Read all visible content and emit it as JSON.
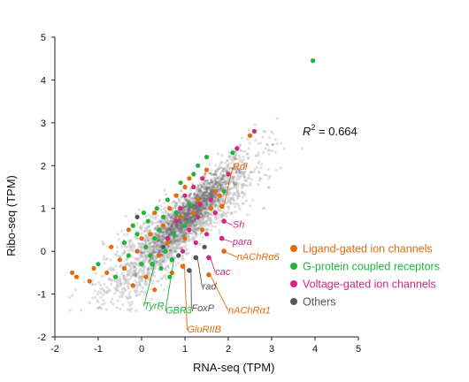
{
  "chart_data": {
    "type": "scatter",
    "xlabel": "RNA-seq (TPM)",
    "ylabel": "Ribo-seq (TPM)",
    "xlim": [
      -2,
      5
    ],
    "ylim": [
      -2,
      5
    ],
    "x_ticks": [
      "-2",
      "-1",
      "0",
      "1",
      "2",
      "3",
      "4",
      "5"
    ],
    "y_ticks": [
      "-2",
      "-1",
      "0",
      "1",
      "2",
      "3",
      "4",
      "5"
    ],
    "annotation": {
      "text_prefix": "R",
      "text_sup": "2",
      "text_suffix": " = 0.664"
    },
    "colors": {
      "background_points": "#bfbfbf",
      "ligand": "#e36c0a",
      "gpcr": "#1fb53c",
      "voltage": "#d6257f",
      "others": "#555555"
    },
    "legend": {
      "placement": "right",
      "entries": [
        {
          "key": "ligand",
          "label": "Ligand-gated ion channels",
          "color": "#e36c0a"
        },
        {
          "key": "gpcr",
          "label": "G-protein coupled receptors",
          "color": "#1fb53c"
        },
        {
          "key": "voltage",
          "label": "Voltage-gated ion channels",
          "color": "#d6257f"
        },
        {
          "key": "others",
          "label": "Others",
          "color": "#555555"
        }
      ]
    },
    "labeled_genes": [
      {
        "label": "Rdl",
        "group": "ligand",
        "x": 1.85,
        "y": 1.05,
        "label_x": 2.1,
        "label_y": 1.9
      },
      {
        "label": "Sh",
        "group": "voltage",
        "x": 1.9,
        "y": 0.7,
        "label_x": 2.1,
        "label_y": 0.55
      },
      {
        "label": "para",
        "group": "voltage",
        "x": 1.85,
        "y": 0.3,
        "label_x": 2.1,
        "label_y": 0.15
      },
      {
        "label": "nAChRα6",
        "group": "ligand",
        "x": 1.9,
        "y": 0.0,
        "label_x": 2.2,
        "label_y": -0.2
      },
      {
        "label": "cac",
        "group": "voltage",
        "x": 1.55,
        "y": -0.15,
        "label_x": 1.7,
        "label_y": -0.55
      },
      {
        "label": "rad",
        "group": "others",
        "x": 1.25,
        "y": -0.15,
        "label_x": 1.4,
        "label_y": -0.9
      },
      {
        "label": "FoxP",
        "group": "others",
        "x": 1.1,
        "y": -0.45,
        "label_x": 1.15,
        "label_y": -1.4
      },
      {
        "label": "nAChRα1",
        "group": "ligand",
        "x": 1.55,
        "y": -0.55,
        "label_x": 2.0,
        "label_y": -1.45
      },
      {
        "label": "GluRIIB",
        "group": "ligand",
        "x": 0.95,
        "y": -0.35,
        "label_x": 1.05,
        "label_y": -1.9
      },
      {
        "label": "GBR3",
        "group": "gpcr",
        "x": 0.7,
        "y": -0.2,
        "label_x": 0.55,
        "label_y": -1.45
      },
      {
        "label": "TyrR",
        "group": "gpcr",
        "x": 0.25,
        "y": -0.3,
        "label_x": 0.05,
        "label_y": -1.35
      }
    ],
    "series": [
      {
        "name": "Ligand-gated ion channels",
        "key": "ligand",
        "color": "#e36c0a",
        "points": [
          [
            -1.6,
            -0.5
          ],
          [
            -1.5,
            -0.6
          ],
          [
            -1.2,
            -0.7
          ],
          [
            -1.1,
            -0.4
          ],
          [
            -0.8,
            -0.5
          ],
          [
            -0.7,
            0.1
          ],
          [
            -0.5,
            -0.2
          ],
          [
            -0.3,
            0.5
          ],
          [
            -0.2,
            -0.8
          ],
          [
            -0.1,
            0.0
          ],
          [
            0.0,
            0.3
          ],
          [
            0.1,
            -0.6
          ],
          [
            0.2,
            0.4
          ],
          [
            0.3,
            0.9
          ],
          [
            0.4,
            -0.1
          ],
          [
            0.5,
            0.6
          ],
          [
            0.6,
            0.2
          ],
          [
            0.7,
            -0.5
          ],
          [
            0.8,
            1.3
          ],
          [
            0.9,
            0.8
          ],
          [
            1.0,
            1.5
          ],
          [
            1.0,
            0.3
          ],
          [
            1.1,
            1.7
          ],
          [
            1.2,
            0.9
          ],
          [
            1.3,
            1.2
          ],
          [
            1.4,
            0.5
          ],
          [
            1.5,
            1.9
          ],
          [
            1.6,
            1.0
          ],
          [
            1.7,
            1.4
          ],
          [
            1.8,
            1.3
          ],
          [
            1.85,
            1.05
          ],
          [
            1.9,
            0.0
          ],
          [
            1.55,
            -0.55
          ],
          [
            0.95,
            -0.35
          ],
          [
            2.5,
            2.7
          ],
          [
            0.3,
            -0.9
          ],
          [
            -0.4,
            -0.4
          ],
          [
            0.65,
            1.0
          ]
        ]
      },
      {
        "name": "G-protein coupled receptors",
        "key": "gpcr",
        "color": "#1fb53c",
        "points": [
          [
            -1.0,
            -0.3
          ],
          [
            -0.6,
            -0.6
          ],
          [
            -0.4,
            0.2
          ],
          [
            -0.3,
            -0.1
          ],
          [
            -0.1,
            0.4
          ],
          [
            0.0,
            -0.3
          ],
          [
            0.1,
            0.1
          ],
          [
            0.15,
            0.7
          ],
          [
            0.2,
            -0.1
          ],
          [
            0.25,
            -0.3
          ],
          [
            0.3,
            0.3
          ],
          [
            0.35,
            1.0
          ],
          [
            0.4,
            0.5
          ],
          [
            0.45,
            -0.4
          ],
          [
            0.5,
            0.8
          ],
          [
            0.55,
            0.0
          ],
          [
            0.6,
            1.2
          ],
          [
            0.7,
            -0.2
          ],
          [
            0.75,
            0.4
          ],
          [
            0.8,
            0.9
          ],
          [
            0.9,
            1.6
          ],
          [
            1.0,
            0.6
          ],
          [
            1.1,
            1.1
          ],
          [
            1.2,
            1.8
          ],
          [
            1.3,
            2.0
          ],
          [
            1.5,
            2.2
          ],
          [
            1.9,
            1.4
          ],
          [
            2.1,
            2.3
          ],
          [
            3.95,
            4.45
          ],
          [
            0.05,
            0.9
          ],
          [
            -0.2,
            0.6
          ],
          [
            0.65,
            -0.6
          ]
        ]
      },
      {
        "name": "Voltage-gated ion channels",
        "key": "voltage",
        "color": "#d6257f",
        "points": [
          [
            0.6,
            0.3
          ],
          [
            0.8,
            0.7
          ],
          [
            0.9,
            1.0
          ],
          [
            1.0,
            1.3
          ],
          [
            1.1,
            0.5
          ],
          [
            1.2,
            1.5
          ],
          [
            1.3,
            0.8
          ],
          [
            1.35,
            1.1
          ],
          [
            1.4,
            1.7
          ],
          [
            1.5,
            0.4
          ],
          [
            1.55,
            -0.15
          ],
          [
            1.6,
            1.2
          ],
          [
            1.7,
            0.9
          ],
          [
            1.85,
            0.3
          ],
          [
            1.9,
            0.7
          ],
          [
            2.0,
            1.8
          ],
          [
            2.2,
            2.4
          ],
          [
            2.6,
            2.8
          ],
          [
            1.25,
            0.2
          ],
          [
            0.95,
            0.0
          ]
        ]
      },
      {
        "name": "Others",
        "key": "others",
        "color": "#555555",
        "points": [
          [
            1.25,
            -0.15
          ],
          [
            1.1,
            -0.45
          ],
          [
            0.85,
            -0.1
          ],
          [
            1.45,
            0.1
          ],
          [
            0.5,
            0.1
          ],
          [
            -0.1,
            0.8
          ]
        ]
      }
    ]
  }
}
